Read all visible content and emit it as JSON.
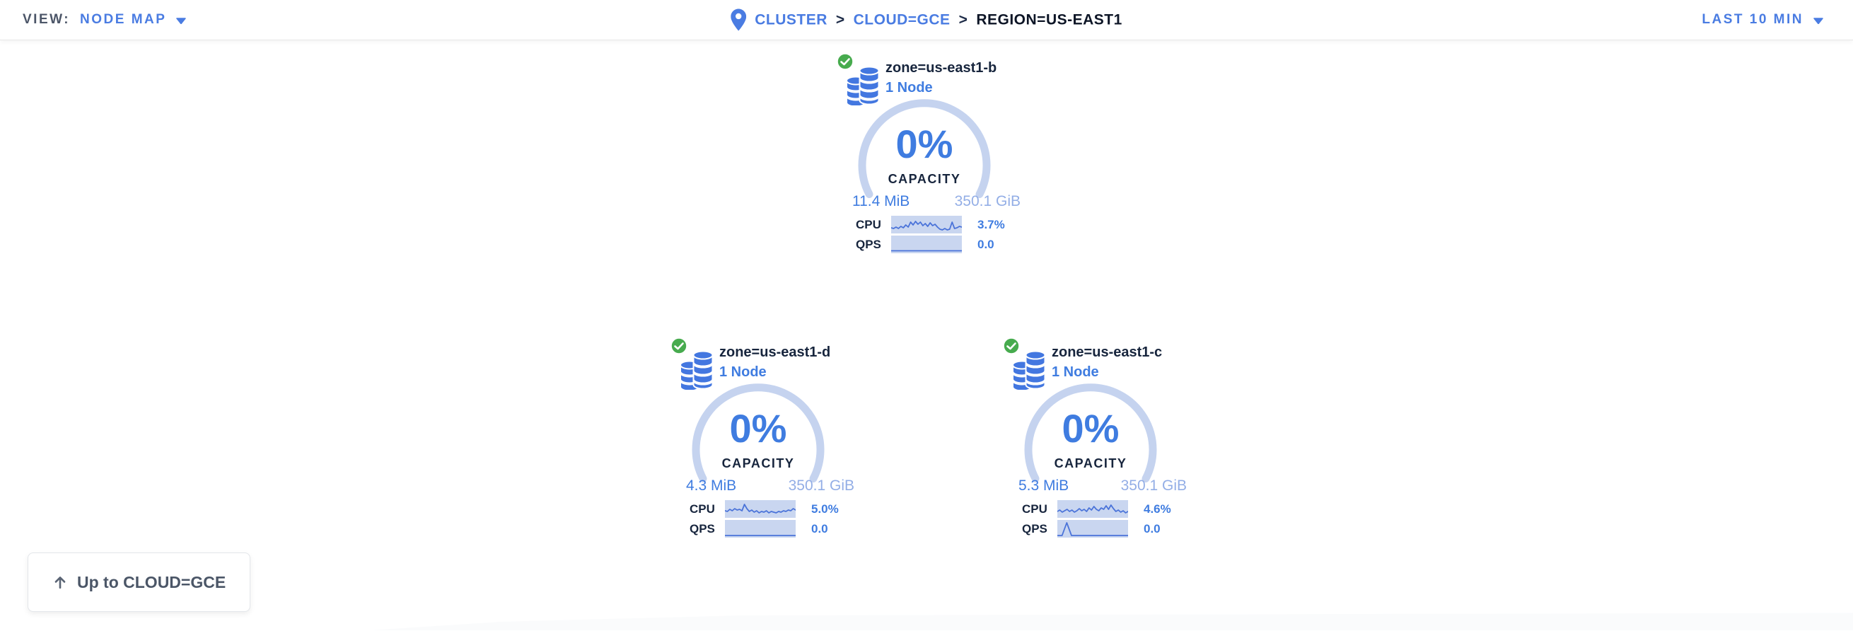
{
  "header": {
    "view_label": "VIEW:",
    "view_value": "NODE MAP",
    "breadcrumb": {
      "separator": ">",
      "items": [
        {
          "label": "CLUSTER",
          "link": true
        },
        {
          "label": "CLOUD=GCE",
          "link": true
        },
        {
          "label": "REGION=US-EAST1",
          "link": false
        }
      ]
    },
    "time_range": "LAST 10 MIN"
  },
  "zones": [
    {
      "name": "zone=us-east1-b",
      "node_count": "1 Node",
      "status": "healthy",
      "capacity_pct": "0%",
      "capacity_label": "CAPACITY",
      "used": "11.4 MiB",
      "total": "350.1 GiB",
      "cpu_label": "CPU",
      "cpu_value": "3.7%",
      "qps_label": "QPS",
      "qps_value": "0.0",
      "cpu_spark": [
        17,
        18,
        16,
        18,
        15,
        17,
        13,
        16,
        9,
        13,
        8,
        12,
        9,
        14,
        11,
        15,
        10,
        14,
        12,
        16,
        19,
        20,
        18,
        20,
        19,
        9,
        18,
        17,
        15,
        16
      ],
      "qps_spark": [
        21.5,
        21.5,
        21.5,
        21.5,
        21.5,
        21.5,
        21.5,
        21.5,
        21.5,
        21.5,
        21.5,
        21.5
      ]
    },
    {
      "name": "zone=us-east1-d",
      "node_count": "1 Node",
      "status": "healthy",
      "capacity_pct": "0%",
      "capacity_label": "CAPACITY",
      "used": "4.3 MiB",
      "total": "350.1 GiB",
      "cpu_label": "CPU",
      "cpu_value": "5.0%",
      "qps_label": "QPS",
      "qps_value": "0.0",
      "cpu_spark": [
        15,
        16,
        13,
        15,
        12,
        14,
        13,
        15,
        6,
        12,
        16,
        14,
        17,
        15,
        18,
        16,
        17,
        15,
        18,
        16,
        17,
        18,
        16,
        17,
        15,
        16,
        14,
        15,
        12,
        14
      ],
      "qps_spark": [
        22,
        22,
        22,
        22,
        22,
        22,
        22,
        22,
        22,
        22,
        22,
        22
      ]
    },
    {
      "name": "zone=us-east1-c",
      "node_count": "1 Node",
      "status": "healthy",
      "capacity_pct": "0%",
      "capacity_label": "CAPACITY",
      "used": "5.3 MiB",
      "total": "350.1 GiB",
      "cpu_label": "CPU",
      "cpu_value": "4.6%",
      "qps_label": "QPS",
      "qps_value": "0.0",
      "cpu_spark": [
        16,
        14,
        17,
        15,
        13,
        16,
        14,
        17,
        15,
        12,
        15,
        13,
        16,
        11,
        14,
        9,
        13,
        15,
        11,
        13,
        8,
        13,
        7,
        12,
        16,
        14,
        17,
        15,
        18,
        16
      ],
      "qps_spark": [
        22,
        22,
        4,
        22,
        22,
        22,
        22,
        22,
        22,
        22,
        22,
        22,
        22,
        22,
        22,
        22
      ]
    }
  ],
  "up_button": {
    "label": "Up to CLOUD=GCE",
    "icon": "arrow-up-icon"
  },
  "icons": {
    "location_pin": "location-pin-icon",
    "caret_down": "caret-down-icon",
    "check_circle": "check-circle-icon",
    "database_stack": "database-stack-icon",
    "arrow_up": "arrow-up-icon"
  },
  "colors": {
    "accent_blue": "#3f7ce0",
    "link_blue": "#4a7ce2",
    "light_blue": "#93aee6",
    "arc_blue": "#c5d3ef",
    "spark_fill": "#c9d6f0",
    "spark_line": "#4a73d9",
    "dark_navy": "#17253d",
    "healthy_green": "#47ab4e"
  }
}
